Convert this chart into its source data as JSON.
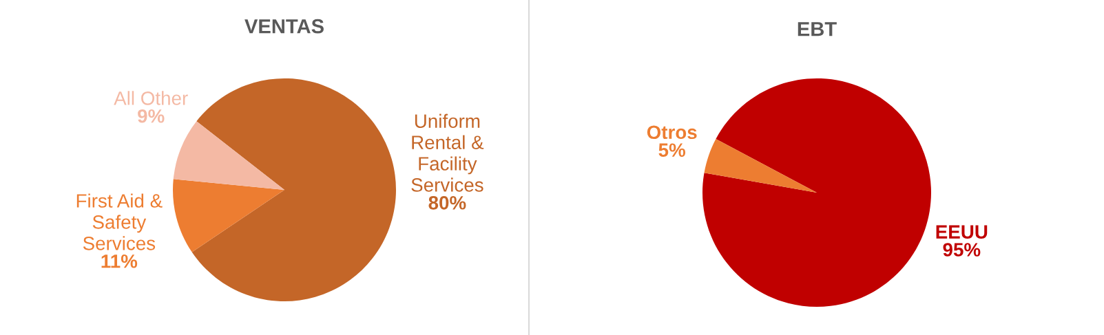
{
  "chart_data": [
    {
      "type": "pie",
      "title": "VENTAS",
      "categories": [
        "Uniform Rental & Facility Services",
        "First Aid & Safety Services",
        "All Other"
      ],
      "values": [
        80,
        11,
        9
      ],
      "colors": [
        "#c46628",
        "#ed7d31",
        "#f4b9a4"
      ],
      "value_labels": [
        "80%",
        "11%",
        "9%"
      ]
    },
    {
      "type": "pie",
      "title": "EBT",
      "categories": [
        "EEUU",
        "Otros"
      ],
      "values": [
        95,
        5
      ],
      "colors": [
        "#c00000",
        "#ed7d31"
      ],
      "value_labels": [
        "95%",
        "5%"
      ]
    }
  ]
}
